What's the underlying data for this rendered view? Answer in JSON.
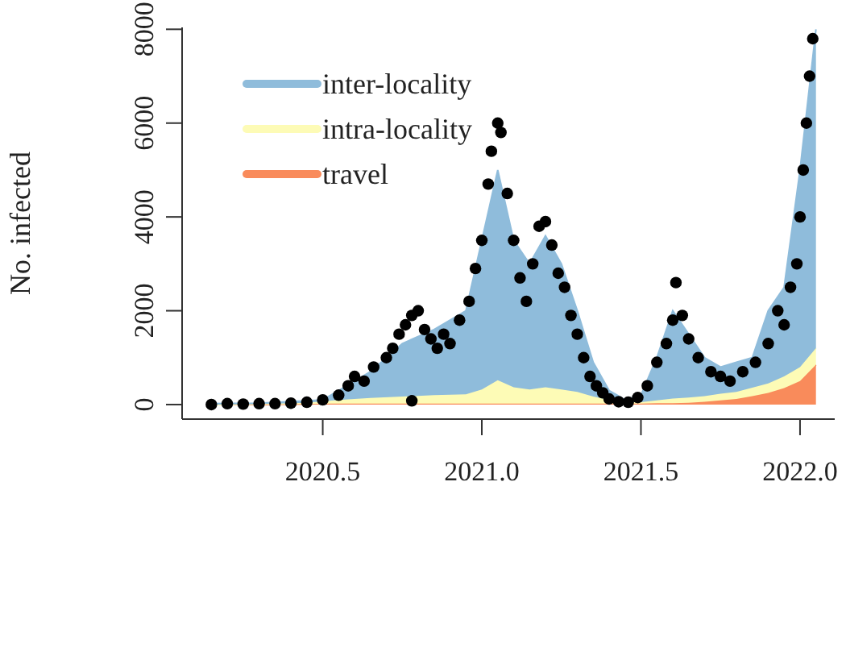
{
  "chart_data": {
    "type": "area",
    "stacked": true,
    "ylabel": "No. infected",
    "xlim": [
      2020.058,
      2022.109
    ],
    "ylim": [
      -310,
      8040
    ],
    "xticks": [
      2020.5,
      {
        "value": 2021,
        "label": "2021.0"
      },
      2021.5,
      {
        "value": 2022,
        "label": "2022.0"
      }
    ],
    "yticks": [
      0,
      2000,
      4000,
      6000,
      8000
    ],
    "grid": false,
    "legend": "top left",
    "x": [
      2020.15,
      2020.3,
      2020.45,
      2020.5,
      2020.55,
      2020.65,
      2020.75,
      2020.85,
      2020.95,
      2021.0,
      2021.05,
      2021.1,
      2021.15,
      2021.2,
      2021.25,
      2021.3,
      2021.35,
      2021.4,
      2021.45,
      2021.5,
      2021.55,
      2021.6,
      2021.65,
      2021.7,
      2021.75,
      2021.8,
      2021.85,
      2021.9,
      2021.95,
      2022.0,
      2022.05
    ],
    "series": [
      {
        "name": "travel",
        "color": "#f98b5b",
        "values": [
          0,
          0,
          10,
          20,
          20,
          20,
          20,
          20,
          20,
          20,
          20,
          20,
          20,
          20,
          20,
          20,
          20,
          20,
          20,
          20,
          30,
          30,
          40,
          60,
          90,
          120,
          180,
          250,
          350,
          500,
          850
        ]
      },
      {
        "name": "intra-locality",
        "color": "#fdfbb6",
        "values": [
          0,
          10,
          30,
          50,
          80,
          120,
          150,
          180,
          200,
          300,
          500,
          350,
          300,
          350,
          300,
          250,
          150,
          80,
          30,
          30,
          60,
          100,
          110,
          120,
          140,
          150,
          180,
          200,
          250,
          300,
          350
        ]
      },
      {
        "name": "inter-locality",
        "color": "#8fbcdb",
        "values": [
          20,
          20,
          40,
          30,
          200,
          560,
          1130,
          1400,
          1780,
          3180,
          4480,
          3130,
          2680,
          3230,
          2680,
          1730,
          730,
          200,
          50,
          150,
          910,
          1870,
          1350,
          820,
          570,
          630,
          640,
          1550,
          1900,
          4200,
          6800
        ]
      },
      {
        "type": "scatter",
        "color": "#000000",
        "marker": "circle",
        "x": [
          2020.15,
          2020.2,
          2020.25,
          2020.3,
          2020.35,
          2020.4,
          2020.45,
          2020.5,
          2020.55,
          2020.58,
          2020.6,
          2020.63,
          2020.66,
          2020.7,
          2020.72,
          2020.74,
          2020.76,
          2020.78,
          2020.78,
          2020.8,
          2020.82,
          2020.84,
          2020.86,
          2020.88,
          2020.9,
          2020.93,
          2020.96,
          2020.98,
          2021.0,
          2021.02,
          2021.03,
          2021.05,
          2021.06,
          2021.08,
          2021.1,
          2021.12,
          2021.14,
          2021.16,
          2021.18,
          2021.2,
          2021.22,
          2021.24,
          2021.26,
          2021.28,
          2021.3,
          2021.32,
          2021.34,
          2021.36,
          2021.38,
          2021.4,
          2021.43,
          2021.46,
          2021.49,
          2021.52,
          2021.55,
          2021.58,
          2021.6,
          2021.61,
          2021.63,
          2021.65,
          2021.68,
          2021.72,
          2021.75,
          2021.78,
          2021.82,
          2021.86,
          2021.9,
          2021.93,
          2021.95,
          2021.97,
          2021.99,
          2022.0,
          2022.01,
          2022.02,
          2022.03,
          2022.04
        ],
        "values": [
          0,
          20,
          10,
          20,
          20,
          30,
          50,
          100,
          200,
          400,
          600,
          500,
          800,
          1000,
          1200,
          1500,
          1700,
          1900,
          80,
          2000,
          1600,
          1400,
          1200,
          1500,
          1300,
          1800,
          2200,
          2900,
          3500,
          4700,
          5400,
          6000,
          5800,
          4500,
          3500,
          2700,
          2200,
          3000,
          3800,
          3900,
          3400,
          2800,
          2500,
          1900,
          1500,
          1000,
          600,
          400,
          250,
          120,
          60,
          50,
          150,
          400,
          900,
          1300,
          1800,
          2600,
          1900,
          1400,
          1000,
          700,
          600,
          500,
          700,
          900,
          1300,
          2000,
          1700,
          2500,
          3000,
          4000,
          5000,
          6000,
          7000,
          7800
        ]
      }
    ]
  }
}
